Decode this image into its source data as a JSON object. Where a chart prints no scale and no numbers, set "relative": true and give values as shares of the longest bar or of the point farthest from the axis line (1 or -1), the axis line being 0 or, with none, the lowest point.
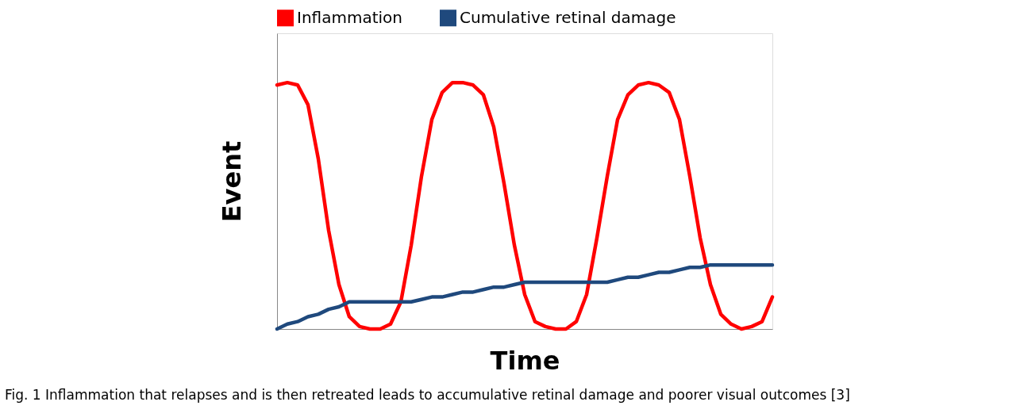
{
  "chart_data": {
    "type": "line",
    "relative": true,
    "xlabel": "Time",
    "ylabel": "Event",
    "categories": [
      null,
      null,
      null,
      null,
      null,
      null,
      null,
      null,
      null,
      null,
      null,
      null,
      null,
      null,
      null,
      null,
      null,
      null,
      null,
      null,
      null,
      null,
      null,
      null,
      null,
      null,
      null,
      null,
      null,
      null,
      null,
      null,
      null,
      null,
      null,
      null,
      null,
      null,
      null,
      null,
      null,
      null,
      null,
      null,
      null,
      null,
      null,
      null,
      null
    ],
    "series": [
      {
        "name": "Inflammation",
        "color": "#ff0000",
        "values": [
          0.99,
          1,
          0.99,
          0.91,
          0.69,
          0.4,
          0.18,
          0.05,
          0.01,
          0,
          0,
          0.02,
          0.11,
          0.34,
          0.62,
          0.85,
          0.96,
          1,
          1,
          0.99,
          0.95,
          0.82,
          0.59,
          0.34,
          0.14,
          0.03,
          0.01,
          0,
          0,
          0.03,
          0.14,
          0.37,
          0.62,
          0.85,
          0.95,
          0.99,
          1,
          0.99,
          0.96,
          0.85,
          0.62,
          0.37,
          0.18,
          0.06,
          0.02,
          0,
          0.01,
          0.03,
          0.13
        ]
      },
      {
        "name": "Cumulative retinal damage",
        "color": "#1f497d",
        "values": [
          0,
          0.02,
          0.03,
          0.05,
          0.06,
          0.08,
          0.09,
          0.11,
          0.11,
          0.11,
          0.11,
          0.11,
          0.11,
          0.11,
          0.12,
          0.13,
          0.13,
          0.14,
          0.15,
          0.15,
          0.16,
          0.17,
          0.17,
          0.18,
          0.19,
          0.19,
          0.19,
          0.19,
          0.19,
          0.19,
          0.19,
          0.19,
          0.19,
          0.2,
          0.21,
          0.21,
          0.22,
          0.23,
          0.23,
          0.24,
          0.25,
          0.25,
          0.26,
          0.26,
          0.26,
          0.26,
          0.26,
          0.26,
          0.26
        ]
      }
    ],
    "legend": "top",
    "grid": false,
    "marker": "none",
    "line_style": "solid",
    "annotations": [
      "Fig. 1 Inflammation that relapses and is then retreated leads to accumulative retinal damage and poorer visual outcomes [3]"
    ]
  }
}
